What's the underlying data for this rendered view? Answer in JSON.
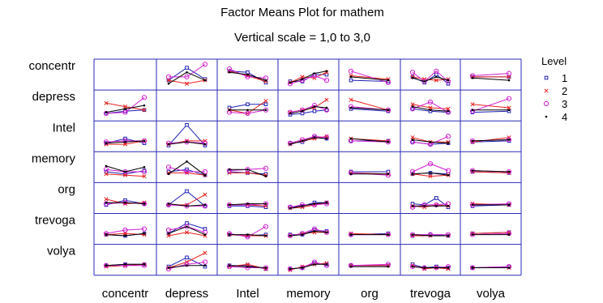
{
  "chart_data": {
    "type": "line",
    "title": "Factor Means Plot for mathem",
    "subtitle": "Vertical scale = 1,0 to 3,0",
    "ylim": [
      1.0,
      3.0
    ],
    "factors": [
      "concentr",
      "depress",
      "Intel",
      "memory",
      "org",
      "trevoga",
      "volya"
    ],
    "legend": {
      "title": "Level",
      "placement": "right",
      "levels": [
        {
          "label": "1",
          "color": "#1f1fb4",
          "marker": "square"
        },
        {
          "label": "2",
          "color": "#e8211f",
          "marker": "x"
        },
        {
          "label": "3",
          "color": "#d21fd2",
          "marker": "circle"
        },
        {
          "label": "4",
          "color": "#000000",
          "marker": "dot"
        }
      ]
    },
    "cells": [
      [
        null,
        [
          [
            1.5,
            2.6,
            1.6
          ],
          [
            1.5,
            1.2,
            1.5
          ],
          [
            1.8,
            1.8,
            2.9
          ],
          [
            1.2,
            2.2,
            1.5
          ]
        ],
        [
          [
            2.3,
            2.2,
            1.3
          ],
          [
            2.3,
            1.9,
            1.4
          ],
          [
            2.5,
            1.8,
            1.7
          ],
          [
            2.2,
            2.0,
            1.5
          ]
        ],
        [
          [
            1.4,
            1.4,
            2.0,
            2.0
          ],
          [
            1.3,
            1.8,
            1.7,
            2.2
          ],
          [
            1.2,
            1.5,
            1.9,
            1.5
          ],
          [
            1.3,
            1.6,
            2.1,
            2.3
          ]
        ],
        [
          [
            1.5,
            1.4
          ],
          [
            1.9,
            1.6
          ],
          [
            2.3,
            1.3
          ],
          [
            1.8,
            1.5
          ]
        ],
        [
          [
            1.8,
            1.3,
            2.0,
            1.2
          ],
          [
            1.8,
            1.6,
            1.5,
            1.6
          ],
          [
            2.2,
            1.4,
            2.3,
            1.4
          ],
          [
            1.7,
            1.4,
            1.8,
            1.5
          ]
        ],
        [
          [
            1.8,
            1.8
          ],
          [
            1.8,
            1.8
          ],
          [
            1.9,
            2.1
          ],
          [
            1.7,
            1.5
          ]
        ]
      ],
      [
        [
          [
            1.3,
            1.5,
            1.6
          ],
          [
            2.2,
            1.9,
            1.6
          ],
          [
            1.3,
            1.4,
            2.7
          ],
          [
            1.4,
            1.7,
            2.0
          ]
        ],
        null,
        [
          [
            1.8,
            2.1,
            2.1
          ],
          [
            1.6,
            1.3,
            2.4
          ],
          [
            1.4,
            1.3,
            1.6
          ],
          [
            1.6,
            1.6,
            1.6
          ]
        ],
        [
          [
            1.2,
            1.3,
            1.5,
            1.6
          ],
          [
            1.4,
            1.6,
            1.8,
            2.5
          ],
          [
            1.4,
            1.6,
            2.0,
            1.6
          ],
          [
            1.3,
            1.5,
            1.9,
            1.8
          ]
        ],
        [
          [
            1.7,
            1.5
          ],
          [
            2.5,
            1.6
          ],
          [
            1.9,
            1.6
          ],
          [
            1.8,
            1.6
          ]
        ],
        [
          [
            1.7,
            1.5,
            1.4
          ],
          [
            2.1,
            1.8,
            1.7
          ],
          [
            1.7,
            2.3,
            1.4
          ],
          [
            1.9,
            1.6,
            1.5
          ]
        ],
        [
          [
            1.4,
            1.5
          ],
          [
            2.1,
            1.8
          ],
          [
            1.5,
            2.6
          ],
          [
            1.6,
            1.6
          ]
        ]
      ],
      [
        [
          [
            1.4,
            1.8,
            1.4
          ],
          [
            1.3,
            1.3,
            1.6
          ],
          [
            1.5,
            1.6,
            1.6
          ],
          [
            1.4,
            1.5,
            1.6
          ]
        ],
        [
          [
            1.2,
            3.0,
            1.2
          ],
          [
            1.3,
            1.6,
            1.6
          ],
          [
            1.4,
            1.5,
            1.4
          ],
          [
            1.3,
            1.5,
            1.3
          ]
        ],
        null,
        [
          [
            1.4,
            1.5,
            1.9,
            1.8
          ],
          [
            1.3,
            1.6,
            1.8,
            2.0
          ],
          [
            1.4,
            1.7,
            2.0,
            1.9
          ],
          [
            1.3,
            1.6,
            1.9,
            1.8
          ]
        ],
        [
          [
            1.6,
            1.6
          ],
          [
            1.8,
            1.6
          ],
          [
            1.6,
            1.5
          ],
          [
            1.8,
            1.5
          ]
        ],
        [
          [
            1.5,
            1.3,
            1.4
          ],
          [
            1.9,
            1.5,
            1.5
          ],
          [
            1.5,
            1.3,
            2.0
          ],
          [
            1.7,
            1.5,
            1.4
          ]
        ],
        [
          [
            1.5,
            1.6
          ],
          [
            1.5,
            1.9
          ],
          [
            1.6,
            1.7
          ],
          [
            1.6,
            1.7
          ]
        ]
      ],
      [
        [
          [
            1.6,
            1.4,
            1.7
          ],
          [
            1.4,
            1.3,
            1.2
          ],
          [
            1.8,
            1.6,
            1.6
          ],
          [
            2.1,
            1.6,
            2.0
          ]
        ],
        [
          [
            1.6,
            1.8,
            1.3
          ],
          [
            1.5,
            1.5,
            1.3
          ],
          [
            2.0,
            1.6,
            1.6
          ],
          [
            1.4,
            2.5,
            1.3
          ]
        ],
        [
          [
            1.6,
            1.5,
            1.4
          ],
          [
            1.5,
            1.5,
            1.3
          ],
          [
            1.7,
            1.8,
            1.9
          ],
          [
            1.8,
            1.8,
            1.2
          ]
        ],
        null,
        [
          [
            1.6,
            1.6
          ],
          [
            1.5,
            1.4
          ],
          [
            1.5,
            1.3
          ],
          [
            1.4,
            1.4
          ]
        ],
        [
          [
            1.4,
            1.5,
            1.4
          ],
          [
            1.4,
            1.2,
            1.3
          ],
          [
            1.6,
            2.3,
            1.7
          ],
          [
            1.4,
            1.5,
            1.3
          ]
        ],
        [
          [
            1.6,
            1.5
          ],
          [
            1.6,
            1.5
          ],
          [
            1.7,
            1.6
          ],
          [
            1.7,
            1.6
          ]
        ]
      ],
      [
        [
          [
            1.4,
            1.8,
            1.5
          ],
          [
            1.9,
            1.5,
            1.6
          ],
          [
            1.5,
            1.6,
            1.5
          ],
          [
            1.6,
            1.6,
            1.5
          ]
        ],
        [
          [
            1.4,
            2.6,
            1.3
          ],
          [
            1.4,
            1.4,
            2.3
          ],
          [
            1.4,
            1.3,
            1.3
          ],
          [
            1.5,
            1.3,
            1.4
          ]
        ],
        [
          [
            1.3,
            1.3,
            1.2
          ],
          [
            1.4,
            1.4,
            1.3
          ],
          [
            1.4,
            1.4,
            1.5
          ],
          [
            1.4,
            1.5,
            1.5
          ]
        ],
        [
          [
            1.2,
            1.3,
            1.6,
            1.6
          ],
          [
            1.1,
            1.2,
            1.4,
            1.6
          ],
          [
            1.2,
            1.4,
            1.4,
            1.5
          ],
          [
            1.1,
            1.3,
            1.5,
            1.6
          ]
        ],
        null,
        [
          [
            1.5,
            1.4,
            2.0,
            1.2
          ],
          [
            1.3,
            1.2,
            1.4,
            1.3
          ],
          [
            1.2,
            1.4,
            1.4,
            1.5
          ],
          [
            1.3,
            1.3,
            1.3,
            1.3
          ]
        ],
        [
          [
            1.3,
            1.4
          ],
          [
            1.5,
            1.4
          ],
          [
            1.4,
            1.5
          ],
          [
            1.4,
            1.4
          ]
        ]
      ],
      [
        [
          [
            1.5,
            1.4,
            1.6
          ],
          [
            1.5,
            1.6,
            1.5
          ],
          [
            1.6,
            1.9,
            2.0
          ],
          [
            1.5,
            1.4,
            1.6
          ]
        ],
        [
          [
            1.6,
            2.5,
            2.0
          ],
          [
            1.4,
            1.7,
            1.4
          ],
          [
            1.9,
            2.2,
            1.7
          ],
          [
            1.6,
            2.2,
            1.5
          ]
        ],
        [
          [
            1.5,
            1.4,
            1.5
          ],
          [
            1.5,
            1.4,
            1.4
          ],
          [
            1.6,
            1.3,
            2.2
          ],
          [
            1.5,
            1.5,
            1.4
          ]
        ],
        [
          [
            1.5,
            1.5,
            1.9,
            1.8
          ],
          [
            1.4,
            1.6,
            1.7,
            1.7
          ],
          [
            1.4,
            1.6,
            2.0,
            1.7
          ],
          [
            1.4,
            1.5,
            1.8,
            1.7
          ]
        ],
        [
          [
            1.5,
            1.6
          ],
          [
            1.6,
            1.5
          ],
          [
            1.5,
            1.5
          ],
          [
            1.5,
            1.5
          ]
        ],
        [
          [
            1.4,
            1.5,
            1.4
          ],
          [
            1.4,
            1.4,
            1.4
          ],
          [
            1.5,
            1.5,
            1.5
          ],
          [
            1.5,
            1.4,
            1.4
          ]
        ],
        [
          [
            1.6,
            1.7
          ],
          [
            1.6,
            1.7
          ],
          [
            1.5,
            1.6
          ],
          [
            1.5,
            1.5
          ]
        ]
      ],
      [
        [
          [
            1.5,
            1.6,
            1.6
          ],
          [
            1.4,
            1.5,
            1.6
          ],
          [
            1.5,
            1.5,
            1.5
          ],
          [
            1.5,
            1.6,
            1.6
          ]
        ],
        [
          [
            1.4,
            2.2,
            1.4
          ],
          [
            1.3,
            1.8,
            2.6
          ],
          [
            1.2,
            1.6,
            1.8
          ],
          [
            1.3,
            1.5,
            1.5
          ]
        ],
        [
          [
            1.5,
            1.5,
            1.2
          ],
          [
            1.4,
            1.6,
            1.2
          ],
          [
            1.4,
            1.3,
            1.3
          ],
          [
            1.5,
            1.4,
            1.3
          ]
        ],
        [
          [
            1.2,
            1.3,
            1.7,
            1.6
          ],
          [
            1.1,
            1.4,
            1.6,
            1.7
          ],
          [
            1.2,
            1.3,
            1.8,
            1.5
          ],
          [
            1.2,
            1.3,
            1.6,
            1.6
          ]
        ],
        [
          [
            1.5,
            1.5
          ],
          [
            1.5,
            1.5
          ],
          [
            1.5,
            1.6
          ],
          [
            1.4,
            1.4
          ]
        ],
        [
          [
            1.6,
            1.3,
            1.4,
            1.3
          ],
          [
            1.5,
            1.2,
            1.3,
            1.2
          ],
          [
            1.4,
            1.3,
            1.3,
            1.4
          ],
          [
            1.4,
            1.3,
            1.3,
            1.3
          ]
        ],
        [
          [
            1.3,
            1.4
          ],
          [
            1.3,
            1.3
          ],
          [
            1.3,
            1.4
          ],
          [
            1.3,
            1.3
          ]
        ]
      ]
    ]
  }
}
